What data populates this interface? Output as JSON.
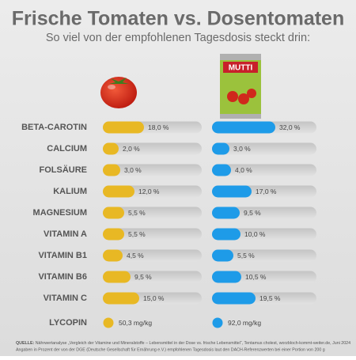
{
  "chart_data": {
    "type": "bar",
    "title": "Frische Tomaten vs. Dosentomaten",
    "subtitle": "So viel von der empfohlenen Tagesdosis steckt drin:",
    "can_brand": "MUTTI",
    "categories": [
      "BETA-CAROTIN",
      "CALCIUM",
      "FOLSÄURE",
      "KALIUM",
      "MAGNESIUM",
      "VITAMIN A",
      "VITAMIN B1",
      "VITAMIN B6",
      "VITAMIN C"
    ],
    "series": [
      {
        "color": "#e8b824",
        "values": [
          18.0,
          2.0,
          3.0,
          12.0,
          5.5,
          5.5,
          4.5,
          9.5,
          15.0
        ],
        "value_labels": [
          "18,0 %",
          "2,0 %",
          "3,0 %",
          "12,0 %",
          "5,5 %",
          "5,5 %",
          "4,5 %",
          "9,5 %",
          "15,0 %"
        ]
      },
      {
        "color": "#1e9be8",
        "values": [
          32.0,
          3.0,
          4.0,
          17.0,
          9.5,
          10.0,
          5.5,
          10.5,
          19.5
        ],
        "value_labels": [
          "32,0 %",
          "3,0 %",
          "4,0 %",
          "17,0 %",
          "9,5 %",
          "10,0 %",
          "5,5 %",
          "10,5 %",
          "19,5 %"
        ]
      }
    ],
    "extra": {
      "category": "LYCOPIN",
      "values": [
        50.3,
        92.0
      ],
      "value_labels": [
        "50,3 mg/kg",
        "92,0 mg/kg"
      ]
    },
    "source_label": "QUELLE:",
    "source": "Nährwertanalyse „Vergleich der Vitamine und Mineralstoffe – Lebensmittel in der Dose vs. frische Lebensmittel“, Tentamus cholest, worzbloch-kommt-weiter.de, Juni 2024",
    "note": "Angaben in Prozent der von der DGE (Deutsche Gesellschaft für Ernährung e.V.) empfohlenen Tagesdosis laut den DACH-Referenzwerten bei einer Portion von 200 g"
  }
}
